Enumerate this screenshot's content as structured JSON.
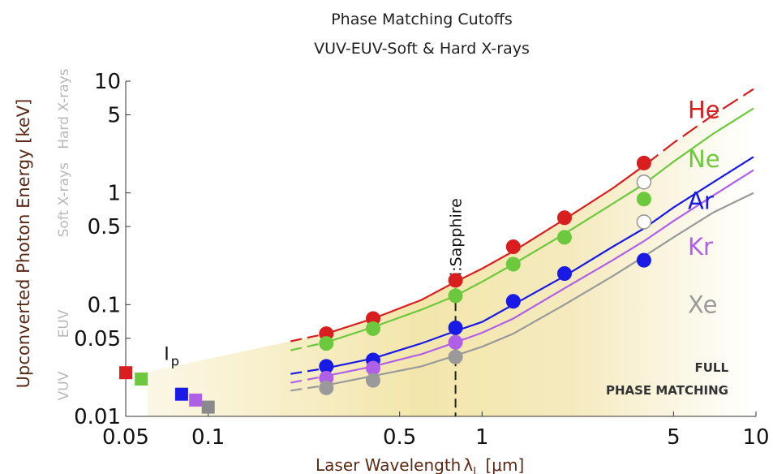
{
  "chart_data": {
    "type": "scatter",
    "title": "Phase Matching Cutoffs",
    "subtitle": "VUV-EUV-Soft & Hard X-rays",
    "xlabel": "Laser Wavelength",
    "xlabel_symbol": "λ",
    "xlabel_sub": "L",
    "xlabel_unit": "[μm]",
    "ylabel": "Upconverted Photon Energy [keV]",
    "xscale": "log",
    "yscale": "log",
    "xlim": [
      0.05,
      10
    ],
    "ylim": [
      0.01,
      10
    ],
    "xticks": [
      {
        "value": 0.05,
        "label": "0.05"
      },
      {
        "value": 0.1,
        "label": "0.1"
      },
      {
        "value": 0.5,
        "label": "0.5"
      },
      {
        "value": 1,
        "label": "1"
      },
      {
        "value": 5,
        "label": "5"
      },
      {
        "value": 10,
        "label": "10"
      }
    ],
    "yticks": [
      {
        "value": 0.01,
        "label": "0.01"
      },
      {
        "value": 0.05,
        "label": "0.05"
      },
      {
        "value": 0.1,
        "label": "0.1"
      },
      {
        "value": 0.5,
        "label": "0.5"
      },
      {
        "value": 1,
        "label": "1"
      },
      {
        "value": 5,
        "label": "5"
      },
      {
        "value": 10,
        "label": "10"
      }
    ],
    "regions": [
      {
        "label": "Hard X-rays",
        "from": 3.2,
        "to": 10
      },
      {
        "label": "Soft X-rays",
        "from": 0.3,
        "to": 2.5
      },
      {
        "label": "EUV",
        "from": 0.035,
        "to": 0.13
      },
      {
        "label": "VUV",
        "from": 0.01,
        "to": 0.035
      }
    ],
    "ip_label": "I",
    "ip_sub": "p",
    "ip_points": [
      {
        "gas": "He",
        "x": 0.05,
        "y": 0.0246,
        "color": "#d81e1e"
      },
      {
        "gas": "Ne",
        "x": 0.057,
        "y": 0.0216,
        "color": "#6cc83c"
      },
      {
        "gas": "Ar",
        "x": 0.08,
        "y": 0.0158,
        "color": "#1a1ae6"
      },
      {
        "gas": "Kr",
        "x": 0.09,
        "y": 0.014,
        "color": "#b060e8"
      },
      {
        "gas": "Xe",
        "x": 0.1,
        "y": 0.0121,
        "color": "#8a8a8a"
      }
    ],
    "vline": {
      "x": 0.8,
      "label": "Ti:Sapphire"
    },
    "series": [
      {
        "name": "He",
        "color": "#d81e1e",
        "x": [
          0.27,
          0.4,
          0.8,
          1.3,
          2.0,
          3.9
        ],
        "y": [
          0.055,
          0.075,
          0.165,
          0.33,
          0.6,
          1.85
        ],
        "open": [
          false,
          false,
          false,
          false,
          false,
          false
        ],
        "curve_x": [
          0.2,
          0.27,
          0.4,
          0.6,
          0.8,
          1.0,
          1.3,
          2.0,
          3.0,
          3.9,
          5.0,
          7.0,
          9.8
        ],
        "curve_y": [
          0.047,
          0.055,
          0.075,
          0.11,
          0.16,
          0.21,
          0.3,
          0.58,
          1.1,
          1.75,
          2.8,
          5.0,
          8.5
        ]
      },
      {
        "name": "Ne",
        "color": "#6cc83c",
        "x": [
          0.27,
          0.4,
          0.8,
          1.3,
          2.0,
          3.9,
          3.9
        ],
        "y": [
          0.045,
          0.061,
          0.12,
          0.23,
          0.4,
          0.88,
          1.25
        ],
        "open": [
          false,
          false,
          false,
          false,
          false,
          false,
          true
        ],
        "curve_x": [
          0.2,
          0.27,
          0.4,
          0.6,
          0.8,
          1.0,
          1.3,
          2.0,
          3.0,
          3.9,
          5.0,
          7.0,
          9.8
        ],
        "curve_y": [
          0.039,
          0.046,
          0.063,
          0.09,
          0.12,
          0.16,
          0.23,
          0.43,
          0.8,
          1.2,
          1.9,
          3.4,
          5.7
        ]
      },
      {
        "name": "Ar",
        "color": "#1a1ae6",
        "x": [
          0.27,
          0.4,
          0.8,
          1.3,
          2.0,
          3.9,
          3.9
        ],
        "y": [
          0.028,
          0.032,
          0.062,
          0.107,
          0.19,
          0.25,
          0.55
        ],
        "open": [
          false,
          false,
          false,
          false,
          false,
          false,
          true
        ],
        "curve_x": [
          0.2,
          0.27,
          0.4,
          0.6,
          0.8,
          1.0,
          1.3,
          2.0,
          3.0,
          3.9,
          5.0,
          7.0,
          9.8
        ],
        "curve_y": [
          0.024,
          0.027,
          0.033,
          0.045,
          0.058,
          0.07,
          0.1,
          0.18,
          0.33,
          0.48,
          0.74,
          1.25,
          2.1
        ]
      },
      {
        "name": "Kr",
        "color": "#b060e8",
        "x": [
          0.27,
          0.4,
          0.8
        ],
        "y": [
          0.022,
          0.027,
          0.046
        ],
        "open": [
          false,
          false,
          false
        ],
        "curve_x": [
          0.2,
          0.27,
          0.4,
          0.6,
          0.8,
          1.0,
          1.3,
          2.0,
          3.0,
          3.9,
          5.0,
          7.0,
          9.8
        ],
        "curve_y": [
          0.02,
          0.023,
          0.028,
          0.036,
          0.046,
          0.056,
          0.075,
          0.14,
          0.25,
          0.37,
          0.56,
          0.95,
          1.6
        ]
      },
      {
        "name": "Xe",
        "color": "#9a9a9a",
        "x": [
          0.27,
          0.4,
          0.8
        ],
        "y": [
          0.018,
          0.021,
          0.034
        ],
        "open": [
          false,
          false,
          false
        ],
        "curve_x": [
          0.2,
          0.27,
          0.4,
          0.6,
          0.8,
          1.0,
          1.3,
          2.0,
          3.0,
          3.9,
          5.0,
          7.0,
          9.8
        ],
        "curve_y": [
          0.017,
          0.019,
          0.023,
          0.028,
          0.035,
          0.042,
          0.055,
          0.1,
          0.18,
          0.27,
          0.4,
          0.67,
          1.0
        ]
      }
    ],
    "annotation": {
      "line1": "FULL",
      "line2": "PHASE MATCHING"
    }
  }
}
